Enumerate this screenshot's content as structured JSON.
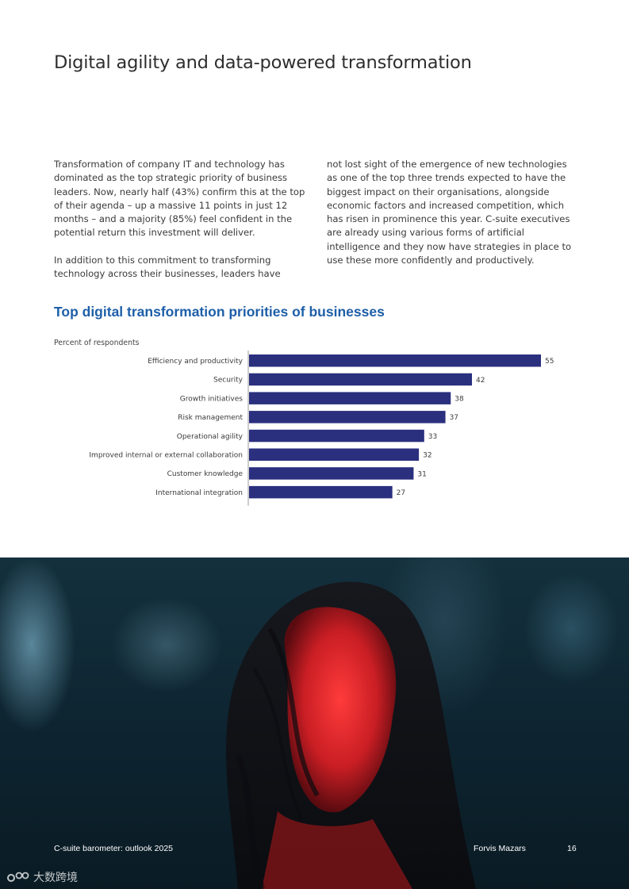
{
  "page": {
    "title": "Digital agility and data-powered transformation"
  },
  "body": {
    "left_paragraphs": [
      "Transformation of company IT and technology has dominated as the top strategic priority of business leaders. Now, nearly half (43%) confirm this at the top of their agenda – up a massive 11 points in just 12 months – and a majority (85%) feel confident in the potential return this investment will deliver.",
      "In addition to this commitment to transforming technology across their businesses, leaders have"
    ],
    "right_paragraphs": [
      "not lost sight of the emergence of new technologies as one of the top three trends expected to have the biggest impact on their organisations, alongside economic factors and increased competition, which has risen in prominence this year. C-suite executives are already using various forms of artificial intelligence and they now have strategies in place to use these more confidently and productively."
    ]
  },
  "chart_data": {
    "type": "bar",
    "orientation": "horizontal",
    "title": "Top digital transformation priorities of businesses",
    "ylabel": "Percent of respondents",
    "xlabel": "",
    "categories": [
      "Efficiency and productivity",
      "Security",
      "Growth initiatives",
      "Risk management",
      "Operational agility",
      "Improved internal or external collaboration",
      "Customer knowledge",
      "International integration"
    ],
    "values": [
      55,
      42,
      38,
      37,
      33,
      32,
      31,
      27
    ],
    "xlim": [
      0,
      60
    ],
    "grid": false,
    "bar_color": "#2a2f7e"
  },
  "footer": {
    "publication": "C-suite barometer: outlook 2025",
    "brand": "Forvis Mazars",
    "page_number": "16"
  },
  "watermark": {
    "text": "大数跨境"
  }
}
